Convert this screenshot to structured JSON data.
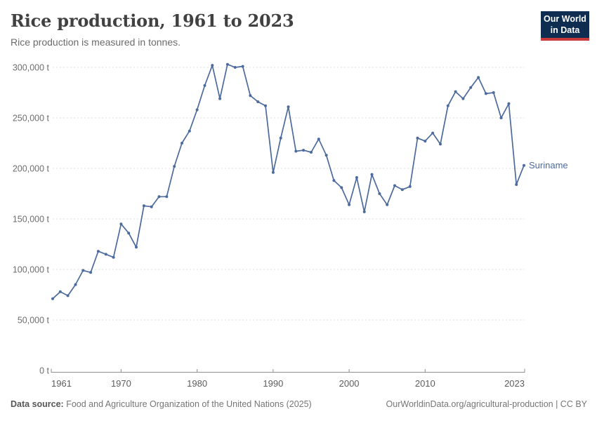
{
  "header": {
    "title": "Rice production, 1961 to 2023",
    "subtitle": "Rice production is measured in tonnes."
  },
  "logo": {
    "line1": "Our World",
    "line2": "in Data"
  },
  "entity_label": "Suriname",
  "footer": {
    "datasource_label": "Data source:",
    "datasource_text": " Food and Agriculture Organization of the United Nations (2025)",
    "link_text": "OurWorldinData.org/agricultural-production | CC BY"
  },
  "colors": {
    "series": "#4c6a9c",
    "grid": "#dcdcdc",
    "axis": "#8f8f8f",
    "ytick_text": "#6e6e6e",
    "xtick_text": "#5c5c5c",
    "logo_bg": "#0f2d50",
    "logo_accent": "#c93a3a"
  },
  "chart_data": {
    "type": "line",
    "title": "Rice production, 1961 to 2023",
    "subtitle": "Rice production is measured in tonnes.",
    "unit": "t",
    "xlim": [
      1961,
      2023
    ],
    "ylim": [
      0,
      300000
    ],
    "grid": "horizontal-dashed",
    "legend": "end-of-line-label",
    "yticks": [
      {
        "value": 0,
        "label": "0 t"
      },
      {
        "value": 50000,
        "label": "50,000 t"
      },
      {
        "value": 100000,
        "label": "100,000 t"
      },
      {
        "value": 150000,
        "label": "150,000 t"
      },
      {
        "value": 200000,
        "label": "200,000 t"
      },
      {
        "value": 250000,
        "label": "250,000 t"
      },
      {
        "value": 300000,
        "label": "300,000 t"
      }
    ],
    "xticks": [
      {
        "value": 1961,
        "label": "1961",
        "align": "start"
      },
      {
        "value": 1970,
        "label": "1970",
        "align": "middle"
      },
      {
        "value": 1980,
        "label": "1980",
        "align": "middle"
      },
      {
        "value": 1990,
        "label": "1990",
        "align": "middle"
      },
      {
        "value": 2000,
        "label": "2000",
        "align": "middle"
      },
      {
        "value": 2010,
        "label": "2010",
        "align": "middle"
      },
      {
        "value": 2023,
        "label": "2023",
        "align": "end"
      }
    ],
    "series": [
      {
        "name": "Suriname",
        "color": "#4c6a9c",
        "x": [
          1961,
          1962,
          1963,
          1964,
          1965,
          1966,
          1967,
          1968,
          1969,
          1970,
          1971,
          1972,
          1973,
          1974,
          1975,
          1976,
          1977,
          1978,
          1979,
          1980,
          1981,
          1982,
          1983,
          1984,
          1985,
          1986,
          1987,
          1988,
          1989,
          1990,
          1991,
          1992,
          1993,
          1994,
          1995,
          1996,
          1997,
          1998,
          1999,
          2000,
          2001,
          2002,
          2003,
          2004,
          2005,
          2006,
          2007,
          2008,
          2009,
          2010,
          2011,
          2012,
          2013,
          2014,
          2015,
          2016,
          2017,
          2018,
          2019,
          2020,
          2021,
          2022,
          2023
        ],
        "values": [
          71000,
          78000,
          74000,
          85000,
          99000,
          97000,
          118000,
          115000,
          112000,
          145000,
          136000,
          122000,
          163000,
          162000,
          172000,
          172000,
          202000,
          225000,
          237000,
          258000,
          282000,
          302000,
          269000,
          303000,
          300000,
          301000,
          272000,
          266000,
          262000,
          196000,
          230000,
          261000,
          217000,
          218000,
          216000,
          229000,
          213000,
          188000,
          181000,
          164000,
          191000,
          157000,
          194000,
          175000,
          164000,
          183000,
          179000,
          182000,
          230000,
          227000,
          235000,
          224000,
          262000,
          276000,
          269000,
          280000,
          290000,
          274000,
          275000,
          250000,
          264000,
          184000,
          203000
        ]
      }
    ]
  }
}
